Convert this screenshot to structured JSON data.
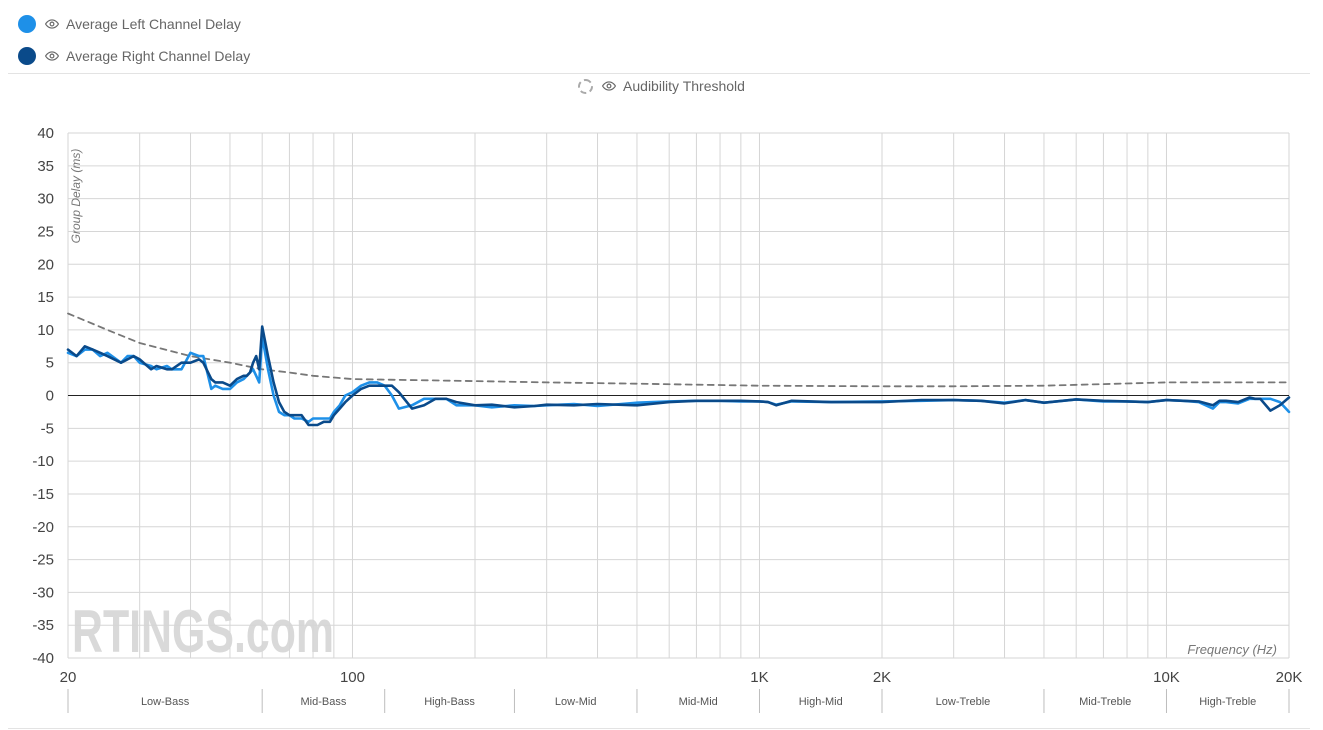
{
  "legend": {
    "items": [
      {
        "label": "Average Left Channel Delay",
        "color": "#1e90e8"
      },
      {
        "label": "Average Right Channel Delay",
        "color": "#0a4a8a"
      }
    ],
    "threshold_label": "Audibility Threshold",
    "threshold_color": "#777777"
  },
  "watermark": "RTINGS.com",
  "chart_data": {
    "type": "line",
    "xscale": "log",
    "xlim": [
      20,
      20000
    ],
    "ylim": [
      -40,
      40
    ],
    "ylabel": "Group Delay (ms)",
    "xlabel": "Frequency (Hz)",
    "x_ticks": [
      {
        "value": 20,
        "label": "20"
      },
      {
        "value": 100,
        "label": "100"
      },
      {
        "value": 1000,
        "label": "1K"
      },
      {
        "value": 2000,
        "label": "2K"
      },
      {
        "value": 10000,
        "label": "10K"
      },
      {
        "value": 20000,
        "label": "20K"
      }
    ],
    "y_ticks": [
      40,
      35,
      30,
      25,
      20,
      15,
      10,
      5,
      0,
      -5,
      -10,
      -15,
      -20,
      -25,
      -30,
      -35,
      -40
    ],
    "bands": [
      {
        "label": "Low-Bass",
        "from": 20,
        "to": 60
      },
      {
        "label": "Mid-Bass",
        "from": 60,
        "to": 120
      },
      {
        "label": "High-Bass",
        "from": 120,
        "to": 250
      },
      {
        "label": "Low-Mid",
        "from": 250,
        "to": 500
      },
      {
        "label": "Mid-Mid",
        "from": 500,
        "to": 1000
      },
      {
        "label": "High-Mid",
        "from": 1000,
        "to": 2000
      },
      {
        "label": "Low-Treble",
        "from": 2000,
        "to": 5000
      },
      {
        "label": "Mid-Treble",
        "from": 5000,
        "to": 10000
      },
      {
        "label": "High-Treble",
        "from": 10000,
        "to": 20000
      }
    ],
    "series": [
      {
        "name": "Average Left Channel Delay",
        "color": "#1e90e8",
        "x": [
          20,
          21,
          22,
          23,
          24,
          25,
          27,
          28,
          29,
          30,
          32,
          33,
          35,
          36,
          38,
          40,
          42,
          43,
          45,
          46,
          48,
          50,
          52,
          54,
          55,
          56,
          57,
          58,
          59,
          60,
          62,
          64,
          66,
          68,
          70,
          72,
          75,
          78,
          80,
          82,
          85,
          88,
          90,
          93,
          96,
          100,
          105,
          110,
          115,
          120,
          125,
          130,
          140,
          150,
          160,
          170,
          180,
          200,
          220,
          250,
          280,
          300,
          350,
          400,
          500,
          600,
          700,
          800,
          900,
          1000,
          1050,
          1100,
          1200,
          1500,
          2000,
          2500,
          3000,
          3500,
          4000,
          4500,
          5000,
          6000,
          7000,
          8000,
          9000,
          10000,
          11000,
          12000,
          13000,
          13500,
          14000,
          15000,
          16000,
          16500,
          17000,
          18000,
          19000,
          20000
        ],
        "y": [
          6.5,
          6,
          7,
          7,
          6,
          6.5,
          5,
          6,
          6,
          5,
          4.5,
          4,
          4.5,
          4,
          4,
          6.5,
          6,
          6,
          1,
          1.5,
          1,
          1,
          2,
          2.5,
          3,
          3.5,
          4,
          3,
          2,
          9,
          4,
          0,
          -2.5,
          -3,
          -3,
          -3.5,
          -3.5,
          -4,
          -3.5,
          -3.5,
          -3.5,
          -3.5,
          -2.5,
          -1.5,
          0,
          0.5,
          1.5,
          2,
          2,
          1.5,
          0,
          -2,
          -1.5,
          -0.5,
          -0.5,
          -0.5,
          -1.5,
          -1.5,
          -1.8,
          -1.5,
          -1.6,
          -1.5,
          -1.3,
          -1.6,
          -1.1,
          -0.9,
          -0.8,
          -0.8,
          -0.9,
          -0.9,
          -1.0,
          -1.4,
          -0.9,
          -1.0,
          -0.9,
          -0.8,
          -0.7,
          -0.8,
          -1.1,
          -0.7,
          -1.1,
          -0.6,
          -0.9,
          -0.9,
          -1.0,
          -0.7,
          -0.8,
          -1.0,
          -2.0,
          -1.0,
          -1.0,
          -1.2,
          -0.5,
          -0.5,
          -0.5,
          -0.5,
          -1.0,
          -2.5
        ]
      },
      {
        "name": "Average Right Channel Delay",
        "color": "#0a4a8a",
        "x": [
          20,
          21,
          22,
          23,
          24,
          25,
          27,
          28,
          29,
          30,
          32,
          33,
          35,
          36,
          38,
          40,
          42,
          43,
          45,
          46,
          48,
          50,
          52,
          54,
          55,
          56,
          57,
          58,
          59,
          60,
          62,
          64,
          66,
          68,
          70,
          72,
          75,
          78,
          80,
          82,
          85,
          88,
          90,
          93,
          96,
          100,
          105,
          110,
          115,
          120,
          125,
          130,
          140,
          150,
          160,
          170,
          180,
          200,
          220,
          250,
          280,
          300,
          350,
          400,
          500,
          600,
          700,
          800,
          900,
          1000,
          1050,
          1100,
          1200,
          1500,
          2000,
          2500,
          3000,
          3500,
          4000,
          4500,
          5000,
          6000,
          7000,
          8000,
          9000,
          10000,
          11000,
          12000,
          13000,
          13500,
          14000,
          15000,
          16000,
          16500,
          17000,
          18000,
          19000,
          20000
        ],
        "y": [
          7,
          6,
          7.5,
          7,
          6.5,
          6,
          5,
          5.5,
          6,
          5.5,
          4,
          4.5,
          4,
          4,
          5,
          5,
          5.5,
          5,
          2.5,
          2,
          2,
          1.5,
          2.5,
          3,
          3,
          3.5,
          5,
          6,
          4,
          10.5,
          6,
          2,
          -1,
          -2.5,
          -3,
          -3,
          -3,
          -4.5,
          -4.5,
          -4.5,
          -4,
          -4,
          -3,
          -2,
          -1,
          0,
          1,
          1.5,
          1.5,
          1.5,
          1.5,
          0.5,
          -2,
          -1.5,
          -0.5,
          -0.5,
          -1,
          -1.5,
          -1.4,
          -1.8,
          -1.6,
          -1.4,
          -1.5,
          -1.3,
          -1.5,
          -1.0,
          -0.8,
          -0.8,
          -0.8,
          -0.9,
          -1.0,
          -1.5,
          -0.8,
          -1.0,
          -1.0,
          -0.7,
          -0.7,
          -0.8,
          -1.2,
          -0.7,
          -1.1,
          -0.6,
          -0.8,
          -0.9,
          -1.0,
          -0.7,
          -0.8,
          -0.9,
          -1.5,
          -0.8,
          -0.8,
          -1.0,
          -0.3,
          -0.5,
          -0.5,
          -2.3,
          -1.5,
          -0.3
        ]
      },
      {
        "name": "Audibility Threshold",
        "color": "#777777",
        "dashed": true,
        "x": [
          20,
          25,
          30,
          40,
          50,
          60,
          70,
          80,
          100,
          200,
          300,
          500,
          1000,
          2000,
          3000,
          5000,
          10000,
          20000
        ],
        "y": [
          12.5,
          10.0,
          8.0,
          6.0,
          5.0,
          4.0,
          3.5,
          3.0,
          2.5,
          2.2,
          2.0,
          1.8,
          1.5,
          1.4,
          1.4,
          1.5,
          2.0,
          2.0
        ]
      }
    ]
  }
}
